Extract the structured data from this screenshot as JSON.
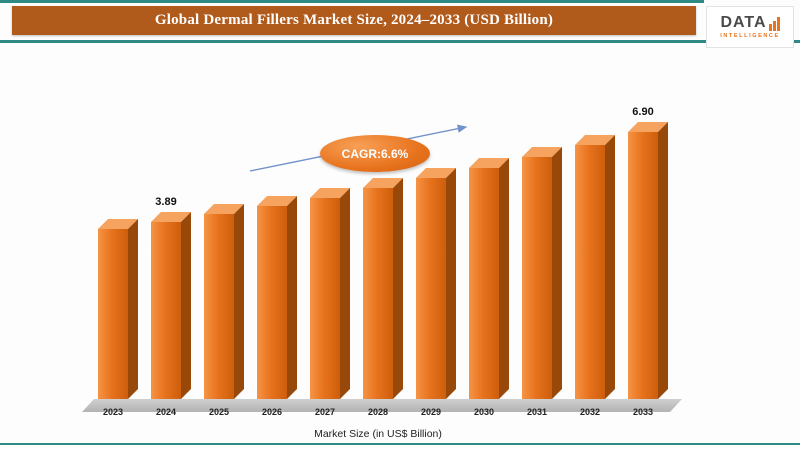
{
  "header": {
    "title": "Global Dermal Fillers Market Size, 2024–2033 (USD Billion)"
  },
  "logo": {
    "text": "DATA",
    "subtext": "INTELLIGENCE"
  },
  "chart_data": {
    "type": "bar",
    "title": "Global Dermal Fillers Market Size, 2024–2033 (USD Billion)",
    "categories": [
      "2023",
      "2024",
      "2025",
      "2026",
      "2027",
      "2028",
      "2029",
      "2030",
      "2031",
      "2032",
      "2033"
    ],
    "values": [
      3.65,
      3.89,
      4.15,
      4.42,
      4.71,
      5.02,
      5.35,
      5.71,
      6.08,
      6.48,
      6.9
    ],
    "data_labels": [
      "",
      "3.89",
      "",
      "",
      "",
      "",
      "",
      "",
      "",
      "",
      "6.90"
    ],
    "annotation": "CAGR:6.6%",
    "xlabel": "Market Size (in US$ Billion)",
    "ylabel": "",
    "legend": false,
    "grid": false,
    "ylim_visual_note": "truncated axis; only 2024 (3.89) and 2033 (6.90) are labeled, other values estimated from 6.6% CAGR",
    "colors": {
      "header_bg": "#b05a1b",
      "teal_accent": "#2e8b84",
      "bar_front": "#e8731e",
      "bar_front_light": "#f59445",
      "bar_side": "#98490a",
      "bar_top": "#f5a35f",
      "floor": "#cfcfcf",
      "arrow": "#7091c9",
      "cagr_bg": "#e8731e"
    }
  }
}
